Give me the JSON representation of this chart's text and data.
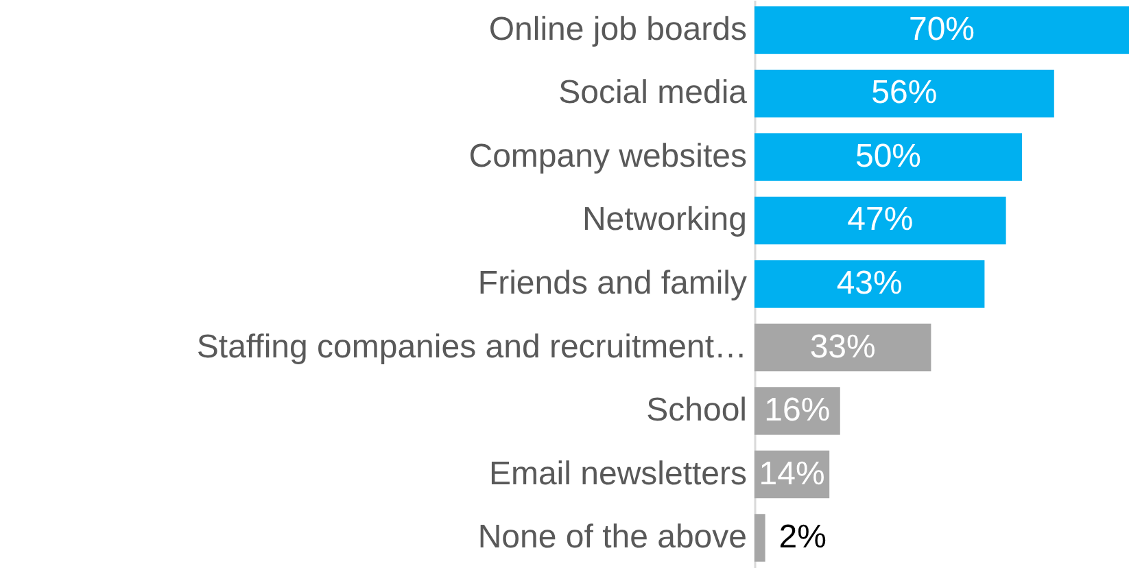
{
  "chart_data": {
    "type": "bar",
    "orientation": "horizontal",
    "categories": [
      "Online job boards",
      "Social media",
      "Company websites",
      "Networking",
      "Friends and family",
      "Staffing companies and recruitment…",
      "School",
      "Email newsletters",
      "None of the above"
    ],
    "values": [
      70,
      56,
      50,
      47,
      43,
      33,
      16,
      14,
      2
    ],
    "colors": [
      "#00b0f0",
      "#00b0f0",
      "#00b0f0",
      "#00b0f0",
      "#00b0f0",
      "#a6a6a6",
      "#a6a6a6",
      "#a6a6a6",
      "#a6a6a6"
    ],
    "value_labels": [
      "70%",
      "56%",
      "50%",
      "47%",
      "43%",
      "33%",
      "16%",
      "14%",
      "2%"
    ]
  }
}
